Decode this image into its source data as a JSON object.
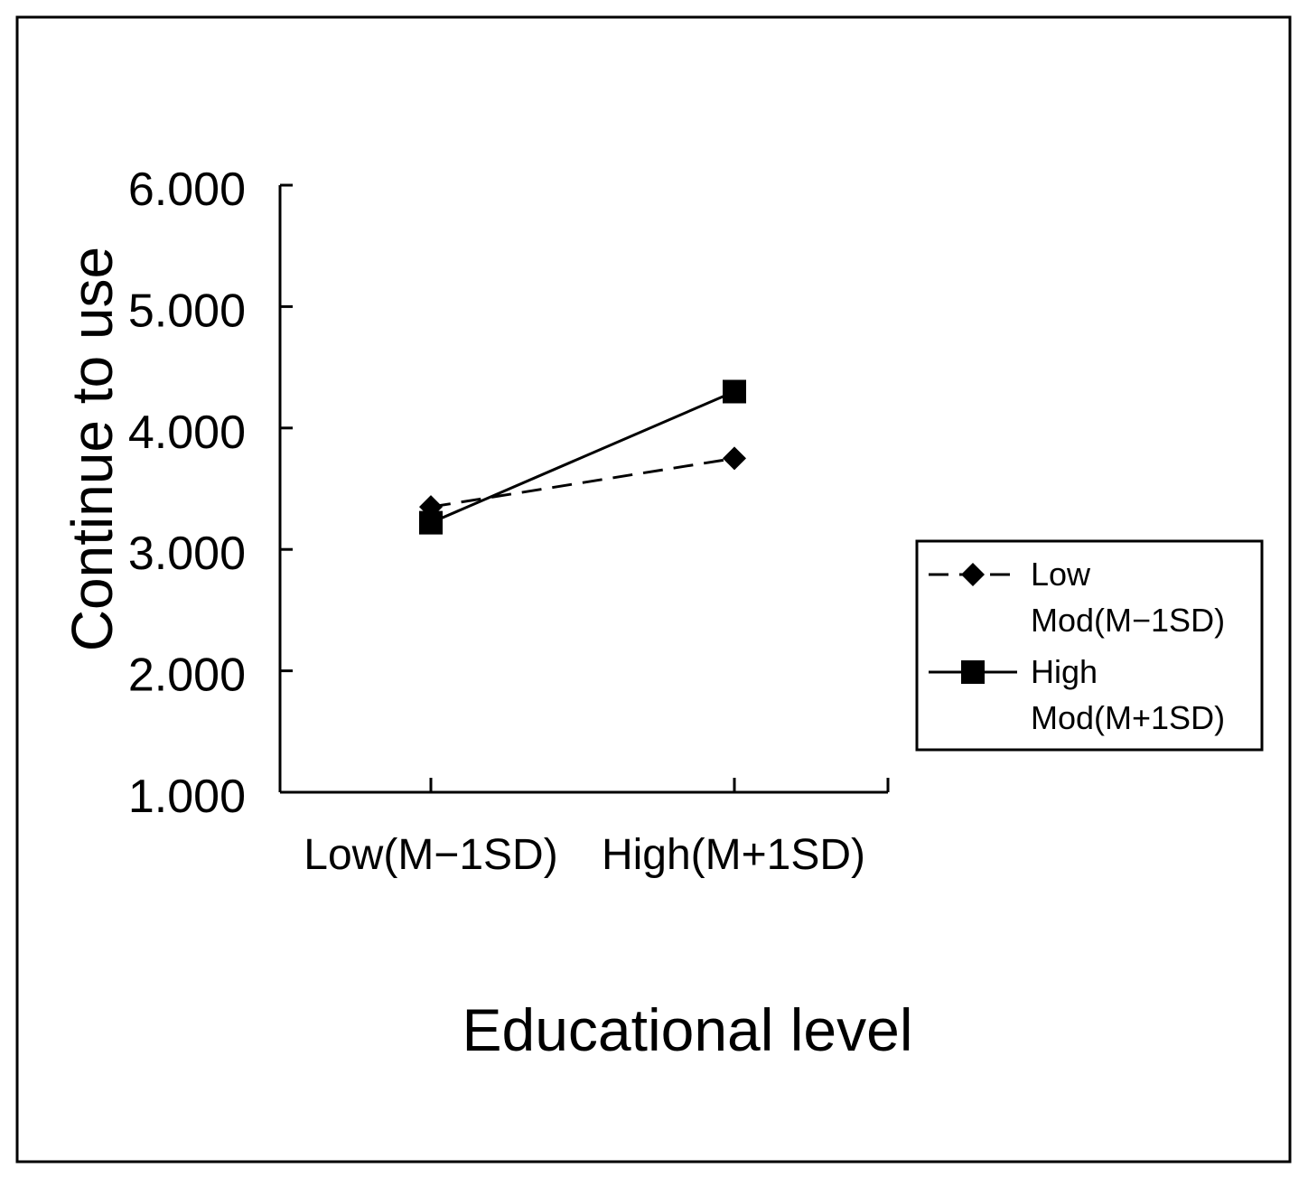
{
  "chart_data": {
    "type": "line",
    "title": "",
    "xlabel": "Educational level",
    "ylabel": "Continue to use",
    "categories": [
      "Low(M−1SD)",
      "High(M+1SD)"
    ],
    "y_ticks": [
      "1.000",
      "2.000",
      "3.000",
      "4.000",
      "5.000",
      "6.000"
    ],
    "ylim": [
      1,
      6
    ],
    "grid": false,
    "legend_position": "right",
    "series": [
      {
        "name": "Low Mod(M−1SD)",
        "legend_lines": [
          "Low",
          "Mod(M−1SD)"
        ],
        "values": [
          3.35,
          3.75
        ],
        "line_style": "dashed",
        "marker": "diamond",
        "color": "#000000"
      },
      {
        "name": "High Mod(M+1SD)",
        "legend_lines": [
          "High",
          "Mod(M+1SD)"
        ],
        "values": [
          3.22,
          4.3
        ],
        "line_style": "solid",
        "marker": "square",
        "color": "#000000"
      }
    ]
  }
}
